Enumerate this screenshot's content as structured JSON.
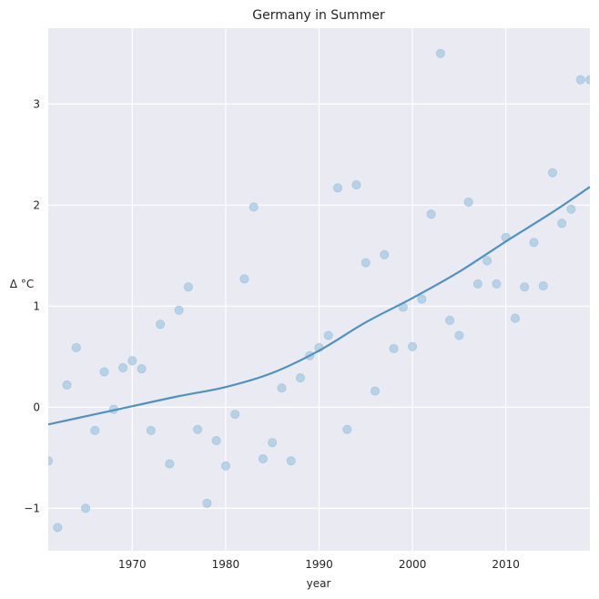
{
  "chart_data": {
    "type": "scatter",
    "title": "Germany in Summer",
    "xlabel": "year",
    "ylabel": "Δ °C",
    "xlim": [
      1961,
      2019
    ],
    "ylim": [
      -1.42,
      3.75
    ],
    "xticks": [
      1970,
      1980,
      1990,
      2000,
      2010
    ],
    "yticks": [
      -1,
      0,
      1,
      2,
      3
    ],
    "grid": true,
    "colors": {
      "background": "#eaeaf2",
      "grid": "#ffffff",
      "point": "#a6c8e3",
      "line": "#4c93c4"
    },
    "series": [
      {
        "kind": "points",
        "x": [
          1961,
          1962,
          1963,
          1964,
          1965,
          1966,
          1967,
          1968,
          1969,
          1970,
          1971,
          1972,
          1973,
          1974,
          1975,
          1976,
          1977,
          1978,
          1979,
          1980,
          1981,
          1982,
          1983,
          1984,
          1985,
          1986,
          1987,
          1988,
          1989,
          1990,
          1991,
          1992,
          1993,
          1994,
          1995,
          1996,
          1997,
          1998,
          1999,
          2000,
          2001,
          2002,
          2003,
          2004,
          2005,
          2006,
          2007,
          2008,
          2009,
          2010,
          2011,
          2012,
          2013,
          2014,
          2015,
          2016,
          2017,
          2018,
          2019
        ],
        "y": [
          -0.53,
          -1.19,
          0.22,
          0.59,
          -1.0,
          -0.23,
          0.35,
          -0.02,
          0.39,
          0.46,
          0.38,
          -0.23,
          0.82,
          -0.56,
          0.96,
          1.19,
          -0.22,
          -0.95,
          -0.33,
          -0.58,
          -0.07,
          1.27,
          1.98,
          -0.51,
          -0.35,
          0.19,
          -0.53,
          0.29,
          0.51,
          0.59,
          0.71,
          2.17,
          -0.22,
          2.2,
          1.43,
          0.16,
          1.51,
          0.58,
          0.99,
          0.6,
          1.07,
          1.91,
          3.5,
          0.86,
          0.71,
          2.03,
          1.22,
          1.45,
          1.22,
          1.68,
          0.88,
          1.19,
          1.63,
          1.2,
          2.32,
          1.82,
          1.96,
          3.24,
          3.24
        ]
      },
      {
        "kind": "trend",
        "x": [
          1961,
          1965,
          1970,
          1975,
          1980,
          1985,
          1990,
          1995,
          2000,
          2005,
          2010,
          2015,
          2019
        ],
        "y": [
          -0.17,
          -0.09,
          0.01,
          0.11,
          0.2,
          0.34,
          0.56,
          0.84,
          1.08,
          1.34,
          1.64,
          1.93,
          2.18
        ]
      }
    ]
  }
}
